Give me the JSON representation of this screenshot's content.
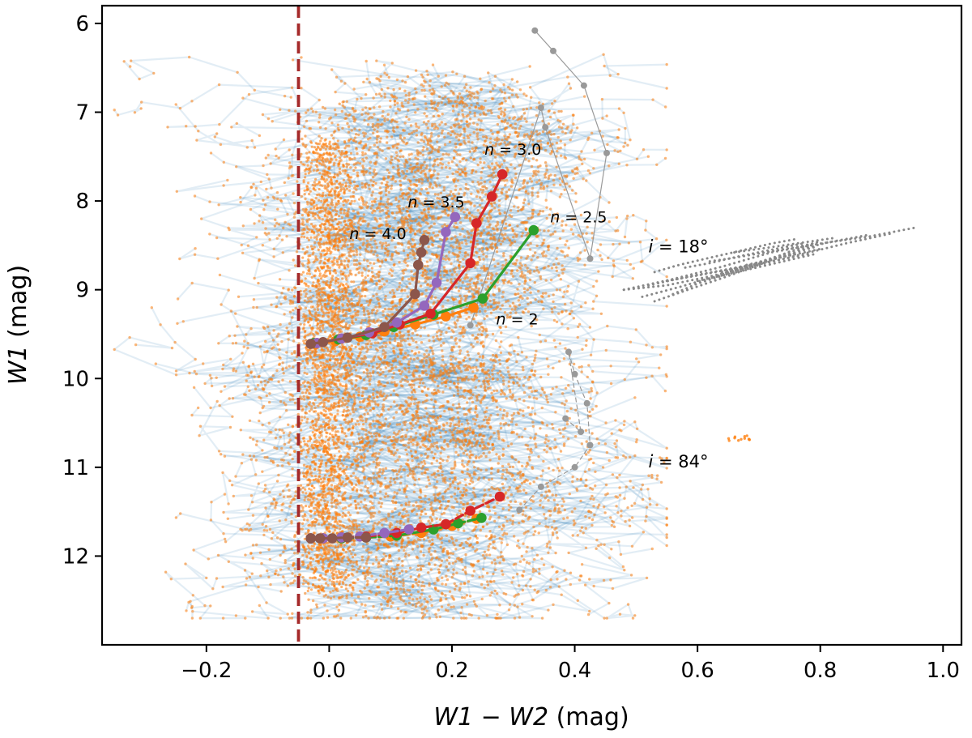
{
  "chart_data": {
    "type": "scatter",
    "title": "",
    "xlabel_parts": [
      "W1",
      " − ",
      "W2",
      " (mag)"
    ],
    "ylabel_parts": [
      "W1",
      " (mag)"
    ],
    "xlim": [
      -0.37,
      1.03
    ],
    "ylim": [
      5.8,
      13.0
    ],
    "y_inverted": true,
    "grid": false,
    "x_ticks": [
      -0.2,
      0.0,
      0.2,
      0.4,
      0.6,
      0.8,
      1.0
    ],
    "x_tick_labels": [
      "−0.2",
      "0.0",
      "0.2",
      "0.4",
      "0.6",
      "0.8",
      "1.0"
    ],
    "y_ticks": [
      6,
      7,
      8,
      9,
      10,
      11,
      12
    ],
    "y_tick_labels": [
      "6",
      "7",
      "8",
      "9",
      "10",
      "11",
      "12"
    ],
    "colors": {
      "background_tracks": "#1f77b4",
      "background_points": "#ff7f0e",
      "cutoff_line": "#a52a2a",
      "reference_track": "#999999"
    },
    "cutoff_line": {
      "x": -0.05,
      "style": "dashed"
    },
    "background": {
      "description_counts": {
        "tracks": 900,
        "points": 7000
      },
      "main_x_range": [
        -0.05,
        0.33
      ],
      "main_y_range": [
        6.9,
        12.5
      ],
      "bright_x_shift": 0.05,
      "isolated_clump": {
        "x": [
          0.65,
          0.69
        ],
        "y": [
          10.63,
          10.7
        ]
      }
    },
    "series": [
      {
        "name": "n=2",
        "color": "#ff7f0e",
        "inclination": "18",
        "x": [
          -0.025,
          0.01,
          0.05,
          0.09,
          0.14,
          0.19,
          0.235
        ],
        "y": [
          9.61,
          9.58,
          9.53,
          9.47,
          9.39,
          9.3,
          9.2
        ]
      },
      {
        "name": "n=2.5",
        "color": "#2ca02c",
        "inclination": "18",
        "x": [
          -0.025,
          0.015,
          0.06,
          0.105,
          0.17,
          0.25,
          0.333
        ],
        "y": [
          9.6,
          9.56,
          9.51,
          9.42,
          9.28,
          9.1,
          8.33
        ]
      },
      {
        "name": "n=3.0",
        "color": "#d62728",
        "inclination": "18",
        "x": [
          -0.02,
          0.02,
          0.07,
          0.115,
          0.165,
          0.23,
          0.24,
          0.265,
          0.282
        ],
        "y": [
          9.6,
          9.55,
          9.49,
          9.39,
          9.27,
          8.7,
          8.25,
          7.95,
          7.7
        ]
      },
      {
        "name": "n=3.5",
        "color": "#9467bd",
        "inclination": "18",
        "x": [
          -0.02,
          0.02,
          0.065,
          0.11,
          0.155,
          0.175,
          0.19,
          0.205
        ],
        "y": [
          9.6,
          9.55,
          9.48,
          9.37,
          9.18,
          8.92,
          8.35,
          8.18
        ]
      },
      {
        "name": "n=4.0",
        "color": "#8c564b",
        "inclination": "18",
        "x": [
          -0.03,
          -0.01,
          0.03,
          0.09,
          0.14,
          0.145,
          0.15,
          0.155
        ],
        "y": [
          9.61,
          9.59,
          9.54,
          9.42,
          9.05,
          8.72,
          8.58,
          8.44
        ]
      },
      {
        "name": "n=2",
        "color": "#ff7f0e",
        "inclination": "84",
        "x": [
          -0.03,
          -0.01,
          0.02,
          0.06,
          0.1,
          0.15,
          0.2,
          0.24
        ],
        "y": [
          11.8,
          11.8,
          11.8,
          11.79,
          11.78,
          11.74,
          11.66,
          11.58
        ]
      },
      {
        "name": "n=2.5",
        "color": "#2ca02c",
        "inclination": "84",
        "x": [
          -0.03,
          -0.01,
          0.02,
          0.06,
          0.11,
          0.17,
          0.21,
          0.248
        ],
        "y": [
          11.8,
          11.8,
          11.8,
          11.79,
          11.77,
          11.7,
          11.63,
          11.57
        ]
      },
      {
        "name": "n=3.0",
        "color": "#d62728",
        "inclination": "84",
        "x": [
          -0.03,
          -0.01,
          0.02,
          0.06,
          0.11,
          0.15,
          0.19,
          0.23,
          0.278
        ],
        "y": [
          11.8,
          11.8,
          11.79,
          11.78,
          11.74,
          11.68,
          11.64,
          11.49,
          11.33
        ]
      },
      {
        "name": "n=3.5",
        "color": "#9467bd",
        "inclination": "84",
        "x": [
          -0.03,
          -0.01,
          0.02,
          0.05,
          0.09,
          0.13
        ],
        "y": [
          11.8,
          11.8,
          11.79,
          11.78,
          11.74,
          11.7
        ]
      },
      {
        "name": "n=4.0",
        "color": "#8c564b",
        "inclination": "84",
        "x": [
          -0.03,
          -0.015,
          0.005,
          0.03,
          0.06
        ],
        "y": [
          11.8,
          11.8,
          11.8,
          11.79,
          11.79
        ]
      },
      {
        "name": "reference track (solid grey)",
        "color": "#999999",
        "style": "solid",
        "x": [
          0.335,
          0.365,
          0.415,
          0.452,
          0.425,
          0.352,
          0.345,
          0.23
        ],
        "y": [
          6.08,
          6.31,
          6.7,
          7.46,
          8.65,
          7.17,
          6.95,
          9.4
        ]
      },
      {
        "name": "reference track (dashed grey)",
        "color": "#999999",
        "style": "dashed",
        "x": [
          0.31,
          0.345,
          0.4,
          0.425,
          0.42,
          0.4,
          0.39,
          0.41,
          0.385
        ],
        "y": [
          11.48,
          11.22,
          11.0,
          10.75,
          10.28,
          9.95,
          9.7,
          10.6,
          10.45
        ]
      }
    ],
    "dotted_envelope": {
      "label": "i = 18° envelope",
      "color": "#888888",
      "style": "dotted",
      "paths": [
        {
          "x": [
            0.48,
            0.56,
            0.64,
            0.72,
            0.8,
            0.88,
            0.955
          ],
          "y": [
            9.0,
            8.88,
            8.74,
            8.58,
            8.48,
            8.4,
            8.3
          ]
        },
        {
          "x": [
            0.48,
            0.55,
            0.62,
            0.7,
            0.77,
            0.84,
            0.92
          ],
          "y": [
            9.0,
            8.95,
            8.85,
            8.72,
            8.6,
            8.48,
            8.36
          ]
        },
        {
          "x": [
            0.51,
            0.57,
            0.63,
            0.69,
            0.75,
            0.81,
            0.88
          ],
          "y": [
            9.08,
            8.97,
            8.85,
            8.71,
            8.58,
            8.47,
            8.38
          ]
        },
        {
          "x": [
            0.53,
            0.58,
            0.64,
            0.7,
            0.75,
            0.8
          ],
          "y": [
            9.13,
            9.01,
            8.87,
            8.72,
            8.57,
            8.45
          ]
        },
        {
          "x": [
            0.53,
            0.57,
            0.62,
            0.67,
            0.72,
            0.76
          ],
          "y": [
            8.8,
            8.72,
            8.64,
            8.56,
            8.48,
            8.43
          ]
        },
        {
          "x": [
            0.56,
            0.6,
            0.65,
            0.7,
            0.75,
            0.79
          ],
          "y": [
            9.05,
            8.93,
            8.82,
            8.71,
            8.6,
            8.52
          ]
        },
        {
          "x": [
            0.58,
            0.62,
            0.67,
            0.72,
            0.77
          ],
          "y": [
            8.75,
            8.7,
            8.62,
            8.55,
            8.48
          ]
        },
        {
          "x": [
            0.6,
            0.64,
            0.69,
            0.74,
            0.79
          ],
          "y": [
            8.9,
            8.84,
            8.76,
            8.68,
            8.6
          ]
        },
        {
          "x": [
            0.62,
            0.66,
            0.71,
            0.76,
            0.8
          ],
          "y": [
            8.68,
            8.64,
            8.58,
            8.52,
            8.46
          ]
        },
        {
          "x": [
            0.64,
            0.68,
            0.72,
            0.76
          ],
          "y": [
            8.8,
            8.73,
            8.66,
            8.59
          ]
        },
        {
          "x": [
            0.66,
            0.7,
            0.74,
            0.78,
            0.82
          ],
          "y": [
            8.58,
            8.54,
            8.5,
            8.46,
            8.42
          ]
        },
        {
          "x": [
            0.68,
            0.72,
            0.76,
            0.8
          ],
          "y": [
            8.72,
            8.66,
            8.6,
            8.54
          ]
        },
        {
          "x": [
            0.55,
            0.6,
            0.66,
            0.72,
            0.78
          ],
          "y": [
            8.9,
            8.84,
            8.76,
            8.68,
            8.6
          ]
        },
        {
          "x": [
            0.52,
            0.58,
            0.64,
            0.7
          ],
          "y": [
            8.95,
            8.86,
            8.78,
            8.7
          ]
        }
      ]
    },
    "annotations": [
      {
        "key": "n30",
        "math": "n",
        "rest": " = 3.0",
        "x": 0.253,
        "y": 7.48
      },
      {
        "key": "n35",
        "math": "n",
        "rest": " = 3.5",
        "x": 0.128,
        "y": 8.07
      },
      {
        "key": "n25",
        "math": "n",
        "rest": " = 2.5",
        "x": 0.36,
        "y": 8.24
      },
      {
        "key": "n40",
        "math": "n",
        "rest": " = 4.0",
        "x": 0.033,
        "y": 8.43
      },
      {
        "key": "n2",
        "math": "n",
        "rest": " = 2",
        "x": 0.272,
        "y": 9.39
      },
      {
        "key": "i18",
        "math": "i",
        "rest": " = 18°",
        "x": 0.52,
        "y": 8.58
      },
      {
        "key": "i84",
        "math": "i",
        "rest": " = 84°",
        "x": 0.52,
        "y": 11.0
      }
    ]
  }
}
